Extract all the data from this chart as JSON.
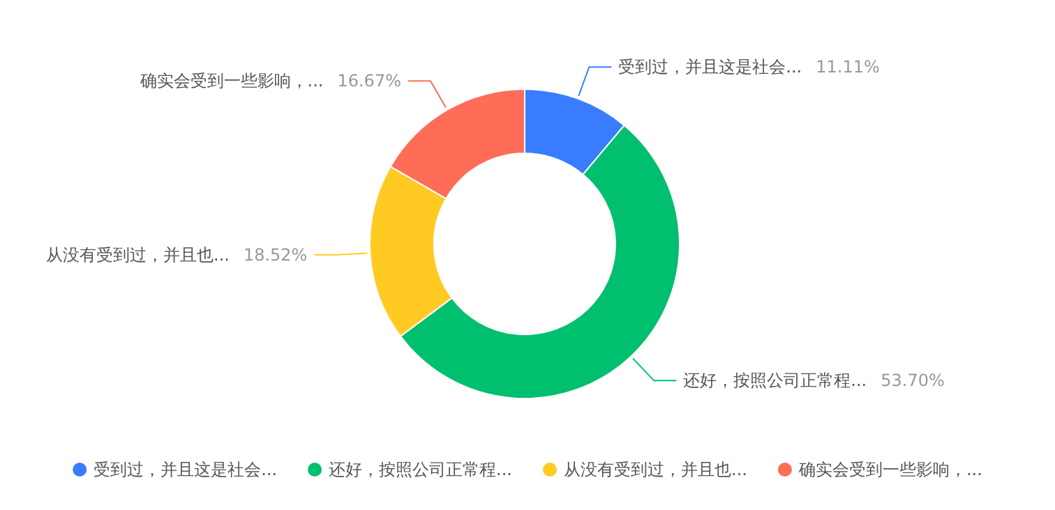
{
  "chart_data": {
    "type": "donut",
    "categories": [
      "受到过，并且这是社会...",
      "还好，按照公司正常程...",
      "从没有受到过，并且也...",
      "确实会受到一些影响，..."
    ],
    "values": [
      11.11,
      53.7,
      18.52,
      16.67
    ],
    "value_labels": [
      "11.11%",
      "53.70%",
      "18.52%",
      "16.67%"
    ],
    "colors": [
      "#3a7cff",
      "#00bf6f",
      "#ffca22",
      "#ff6c57"
    ],
    "legend": "bottom"
  }
}
